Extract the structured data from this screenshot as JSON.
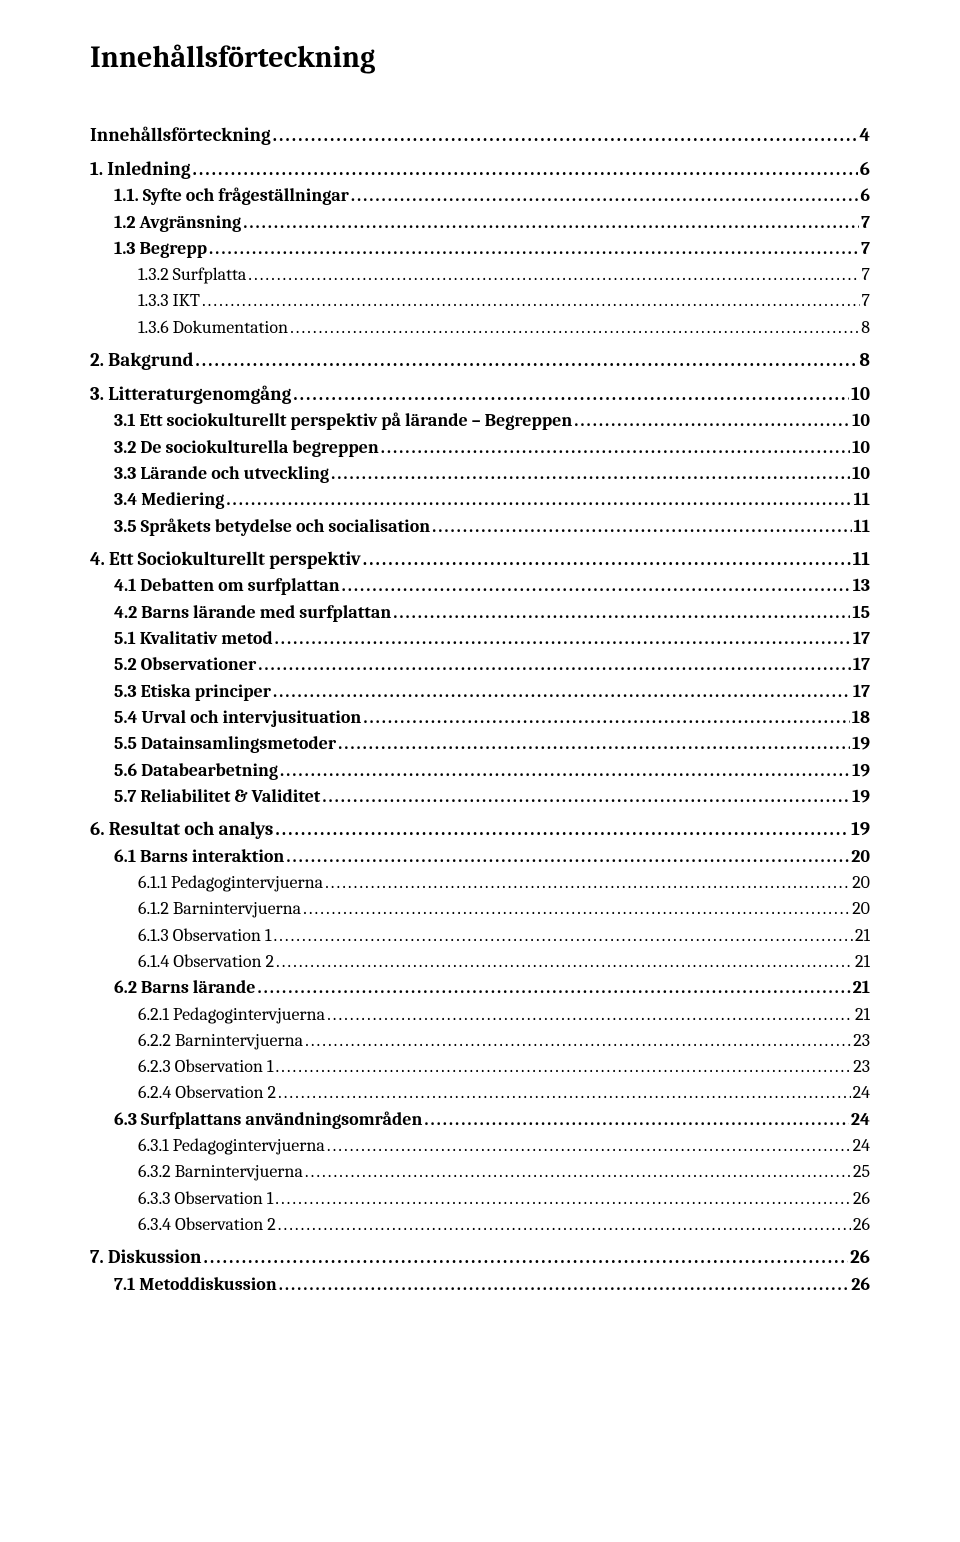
{
  "title": "Innehållsförteckning",
  "toc": [
    {
      "level": 0,
      "label": "Innehållsförteckning",
      "page": "4"
    },
    {
      "level": 0,
      "label": "1. Inledning",
      "page": "6"
    },
    {
      "level": 1,
      "label": "1.1. Syfte och frågeställningar",
      "page": "6"
    },
    {
      "level": 1,
      "label": "1.2 Avgränsning",
      "page": "7"
    },
    {
      "level": 1,
      "label": "1.3 Begrepp",
      "page": "7"
    },
    {
      "level": 2,
      "label": "1.3.2 Surfplatta",
      "page": "7"
    },
    {
      "level": 2,
      "label": "1.3.3 IKT",
      "page": "7"
    },
    {
      "level": 2,
      "label": "1.3.6 Dokumentation",
      "page": "8"
    },
    {
      "level": 0,
      "label": "2. Bakgrund",
      "page": "8"
    },
    {
      "level": 0,
      "label": "3. Litteraturgenomgång",
      "page": "10"
    },
    {
      "level": 1,
      "label": "3.1 Ett sociokulturellt perspektiv på lärande – Begreppen",
      "page": "10"
    },
    {
      "level": 1,
      "label": "3.2 De sociokulturella begreppen",
      "page": "10"
    },
    {
      "level": 1,
      "label": "3.3 Lärande och utveckling",
      "page": "10"
    },
    {
      "level": 1,
      "label": "3.4 Mediering",
      "page": "11"
    },
    {
      "level": 1,
      "label": "3.5 Språkets betydelse och socialisation",
      "page": "11"
    },
    {
      "level": 0,
      "label": "4. Ett Sociokulturellt perspektiv",
      "page": "11"
    },
    {
      "level": 1,
      "label": "4.1 Debatten om surfplattan",
      "page": "13"
    },
    {
      "level": 1,
      "label": "4.2 Barns lärande med surfplattan",
      "page": "15"
    },
    {
      "level": 1,
      "label": "5.1 Kvalitativ metod",
      "page": "17"
    },
    {
      "level": 1,
      "label": "5.2 Observationer",
      "page": "17"
    },
    {
      "level": 1,
      "label": "5.3 Etiska principer",
      "page": "17"
    },
    {
      "level": 1,
      "label": "5.4 Urval och intervjusituation",
      "page": "18"
    },
    {
      "level": 1,
      "label": "5.5 Datainsamlingsmetoder",
      "page": "19"
    },
    {
      "level": 1,
      "label": "5.6 Databearbetning",
      "page": "19"
    },
    {
      "level": 1,
      "label": "5.7 Reliabilitet & Validitet",
      "page": "19"
    },
    {
      "level": 0,
      "label": "6. Resultat och analys",
      "page": "19"
    },
    {
      "level": 1,
      "label": "6.1 Barns interaktion",
      "page": "20"
    },
    {
      "level": 2,
      "label": "6.1.1 Pedagogintervjuerna",
      "page": "20"
    },
    {
      "level": 2,
      "label": "6.1.2 Barnintervjuerna",
      "page": "20"
    },
    {
      "level": 2,
      "label": "6.1.3 Observation 1",
      "page": "21"
    },
    {
      "level": 2,
      "label": "6.1.4 Observation 2",
      "page": "21"
    },
    {
      "level": 1,
      "label": "6.2 Barns lärande",
      "page": "21"
    },
    {
      "level": 2,
      "label": "6.2.1 Pedagogintervjuerna",
      "page": "21"
    },
    {
      "level": 2,
      "label": "6.2.2 Barnintervjuerna",
      "page": "23"
    },
    {
      "level": 2,
      "label": "6.2.3 Observation 1",
      "page": "23"
    },
    {
      "level": 2,
      "label": "6.2.4 Observation 2",
      "page": "24"
    },
    {
      "level": 1,
      "label": "6.3 Surfplattans användningsområden",
      "page": "24"
    },
    {
      "level": 2,
      "label": "6.3.1 Pedagogintervjuerna",
      "page": "24"
    },
    {
      "level": 2,
      "label": "6.3.2 Barnintervjuerna",
      "page": "25"
    },
    {
      "level": 2,
      "label": "6.3.3 Observation 1",
      "page": "26"
    },
    {
      "level": 2,
      "label": "6.3.4 Observation 2",
      "page": "26"
    },
    {
      "level": 0,
      "label": "7. Diskussion",
      "page": "26"
    },
    {
      "level": 1,
      "label": "7.1 Metoddiskussion",
      "page": "26"
    }
  ]
}
